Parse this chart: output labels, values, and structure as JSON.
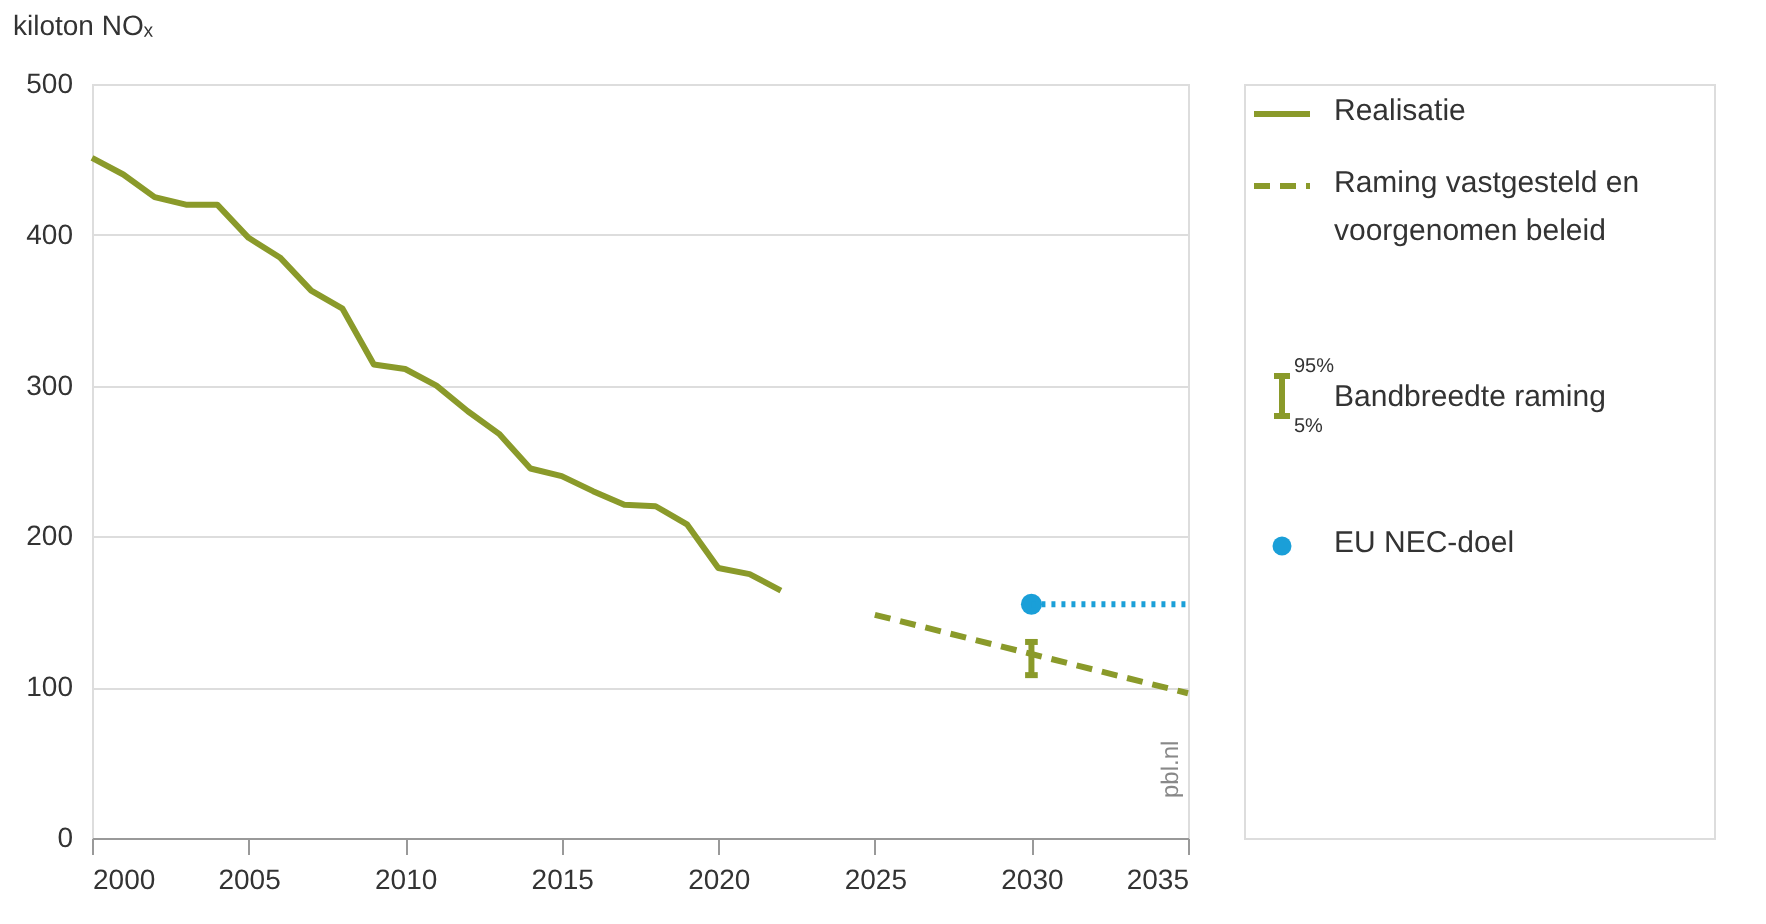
{
  "chart_data": {
    "type": "line",
    "ylabel": "kiloton NOₓ",
    "xlim": [
      2000,
      2035
    ],
    "xticks": [
      2000,
      2005,
      2010,
      2015,
      2020,
      2025,
      2030,
      2035
    ],
    "ylim": [
      0,
      500
    ],
    "yticks": [
      0,
      100,
      200,
      300,
      400,
      500
    ],
    "grid": "y",
    "legend": "right",
    "series": [
      {
        "name": "Realisatie",
        "line_style": "solid",
        "color": "#8a9a2a",
        "x": [
          2000,
          2001,
          2002,
          2003,
          2004,
          2005,
          2006,
          2007,
          2008,
          2009,
          2010,
          2011,
          2012,
          2013,
          2014,
          2015,
          2016,
          2017,
          2018,
          2019,
          2020,
          2021,
          2022
        ],
        "values": [
          451,
          440,
          425,
          420,
          420,
          398,
          385,
          363,
          351,
          314,
          311,
          300,
          283,
          268,
          245,
          240,
          230,
          221,
          220,
          208,
          179,
          175,
          164
        ]
      },
      {
        "name": "Raming vastgesteld en voorgenomen beleid",
        "line_style": "dashed",
        "color": "#8a9a2a",
        "x": [
          2025,
          2030,
          2035
        ],
        "values": [
          148,
          122,
          96
        ],
        "errors": [
          null,
          [
            108,
            130
          ],
          null
        ]
      },
      {
        "name": "EU NEC-doel",
        "type": "scatter",
        "marker": "circle",
        "color": "#1a9fd8",
        "x": [
          2030
        ],
        "values": [
          155
        ]
      },
      {
        "line_style": "dotted",
        "color": "#1a9fd8",
        "x": [
          2030,
          2035
        ],
        "values": [
          155,
          155
        ]
      }
    ],
    "annotations": [
      "Bandbreedte raming",
      "95%",
      "5%",
      "pbl.nl"
    ]
  }
}
